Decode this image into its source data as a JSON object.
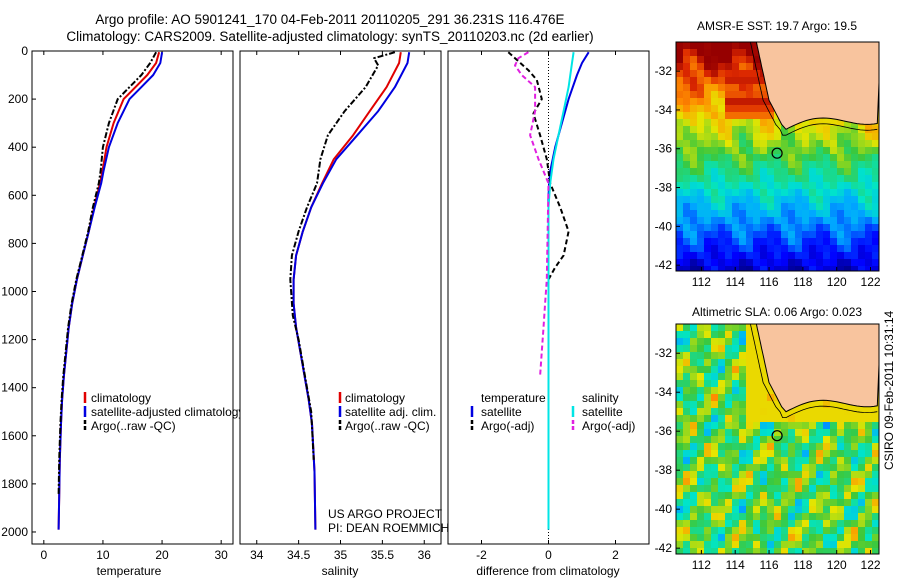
{
  "header": {
    "line1": "Argo profile: AO 5901241_170 04-Feb-2011 20110205_291 36.231S 116.476E",
    "line2": "Climatology: CARS2009. Satellite-adjusted climatology: synTS_20110203.nc (2d earlier)"
  },
  "side_label": "CSIRO 09-Feb-2011 10:31:14",
  "credit": {
    "line1": "US ARGO PROJECT",
    "line2": "PI: DEAN ROEMMICH"
  },
  "colors": {
    "climatology": "#e00000",
    "satellite": "#0000e0",
    "argo": "#000000",
    "salinity_sat": "#00e5e5",
    "salinity_argo": "#e020e0"
  },
  "chart_data": [
    {
      "type": "line",
      "xlabel": "temperature",
      "xlim": [
        -2,
        32
      ],
      "ylim": [
        2050,
        0
      ],
      "xticks": [
        0,
        10,
        20,
        30
      ],
      "yticks": [
        0,
        200,
        400,
        600,
        800,
        1000,
        1200,
        1400,
        1600,
        1800,
        2000
      ],
      "legend": [
        "climatology",
        "satellite-adjusted climatology",
        "Argo(..raw -QC)"
      ],
      "series": [
        {
          "name": "climatology",
          "style": "solid",
          "color": "#e00000",
          "x": [
            19.5,
            19.0,
            17.5,
            15.5,
            13.5,
            11.8,
            10.6,
            9.9,
            9.5,
            8.5,
            7.6,
            6.6,
            5.6,
            4.8,
            4.2,
            3.8,
            3.4,
            3.1,
            2.9,
            2.7,
            2.6,
            2.5
          ],
          "y": [
            5,
            50,
            100,
            150,
            200,
            300,
            400,
            500,
            550,
            650,
            750,
            850,
            950,
            1050,
            1150,
            1250,
            1350,
            1450,
            1550,
            1700,
            1850,
            1990
          ]
        },
        {
          "name": "satellite-adjusted climatology",
          "style": "solid",
          "color": "#0000e0",
          "x": [
            20.0,
            19.7,
            18.5,
            16.5,
            14.5,
            12.5,
            11.0,
            10.1,
            9.7,
            8.6,
            7.6,
            6.6,
            5.6,
            4.8,
            4.2,
            3.8,
            3.4,
            3.1,
            2.9,
            2.7,
            2.6,
            2.5
          ],
          "y": [
            5,
            50,
            100,
            150,
            200,
            300,
            400,
            500,
            550,
            650,
            750,
            850,
            950,
            1050,
            1150,
            1250,
            1350,
            1450,
            1550,
            1700,
            1850,
            1990
          ]
        },
        {
          "name": "Argo(..raw -QC)",
          "style": "dashdot",
          "color": "#000000",
          "x": [
            19.0,
            18.0,
            16.5,
            14.5,
            12.5,
            11.0,
            10.0,
            9.6,
            9.3,
            8.3,
            7.5,
            6.5,
            5.5,
            4.7,
            4.1,
            3.7,
            3.3,
            3.0,
            2.8,
            2.6,
            2.5
          ],
          "y": [
            5,
            50,
            100,
            150,
            200,
            300,
            400,
            500,
            550,
            650,
            750,
            850,
            950,
            1050,
            1150,
            1250,
            1350,
            1450,
            1550,
            1700,
            1850
          ]
        }
      ]
    },
    {
      "type": "line",
      "xlabel": "salinity",
      "xlim": [
        33.8,
        36.2
      ],
      "ylim": [
        2050,
        0
      ],
      "xticks": [
        34,
        34.5,
        35,
        35.5,
        36
      ],
      "yticks": [],
      "legend": [
        "climatology",
        "satellite adj. clim.",
        "Argo(..raw -QC)"
      ],
      "series": [
        {
          "name": "climatology",
          "style": "solid",
          "color": "#e00000",
          "x": [
            35.72,
            35.7,
            35.55,
            35.35,
            35.15,
            34.92,
            34.78,
            34.65,
            34.55,
            34.47,
            34.44,
            34.44,
            34.47,
            34.52,
            34.57,
            34.62,
            34.66,
            34.69,
            34.7
          ],
          "y": [
            5,
            50,
            150,
            250,
            350,
            450,
            550,
            650,
            750,
            850,
            950,
            1050,
            1150,
            1250,
            1350,
            1450,
            1550,
            1750,
            1990
          ]
        },
        {
          "name": "satellite adj. clim.",
          "style": "solid",
          "color": "#0000e0",
          "x": [
            35.82,
            35.8,
            35.65,
            35.45,
            35.2,
            34.95,
            34.79,
            34.65,
            34.55,
            34.47,
            34.44,
            34.44,
            34.47,
            34.52,
            34.57,
            34.62,
            34.66,
            34.69,
            34.7
          ],
          "y": [
            5,
            50,
            150,
            250,
            350,
            450,
            550,
            650,
            750,
            850,
            950,
            1050,
            1150,
            1250,
            1350,
            1450,
            1550,
            1750,
            1990
          ]
        },
        {
          "name": "Argo(..raw -QC)",
          "style": "dashdot",
          "color": "#000000",
          "x": [
            35.65,
            35.4,
            35.45,
            35.3,
            35.05,
            34.85,
            34.76,
            34.72,
            34.6,
            34.5,
            34.42,
            34.4,
            34.43,
            34.5,
            34.55,
            34.6,
            34.65,
            34.68
          ],
          "y": [
            5,
            30,
            60,
            150,
            250,
            350,
            450,
            550,
            650,
            750,
            850,
            950,
            1100,
            1200,
            1300,
            1400,
            1500,
            1700
          ]
        }
      ]
    },
    {
      "type": "line",
      "xlabel": "difference from climatology",
      "xlim": [
        -3,
        3
      ],
      "ylim": [
        2050,
        0
      ],
      "xticks": [
        -2,
        0,
        2
      ],
      "yticks": [],
      "legend_headers": [
        "temperature",
        "salinity"
      ],
      "legend": [
        "satellite",
        "Argo(-adj)",
        "satellite",
        "Argo(-adj)"
      ],
      "series": [
        {
          "name": "satellite",
          "group": "temperature",
          "style": "solid",
          "color": "#0000e0",
          "x": [
            1.2,
            1.0,
            0.85,
            0.6,
            0.4,
            0.2,
            0.05,
            0.0,
            0.0
          ],
          "y": [
            5,
            50,
            100,
            200,
            300,
            400,
            500,
            600,
            1990
          ]
        },
        {
          "name": "Argo(-adj)",
          "group": "temperature",
          "style": "dashed",
          "color": "#000000",
          "x": [
            -1.2,
            -1.0,
            -0.6,
            -0.35,
            -0.2,
            -0.45,
            -0.25,
            -0.05,
            0.05,
            0.35,
            0.6,
            0.45,
            0.2,
            0.0
          ],
          "y": [
            5,
            30,
            80,
            120,
            200,
            260,
            350,
            450,
            550,
            650,
            750,
            850,
            900,
            950
          ]
        },
        {
          "name": "satellite",
          "group": "salinity",
          "style": "solid",
          "color": "#00e5e5",
          "x": [
            0.75,
            0.7,
            0.6,
            0.45,
            0.3,
            0.15,
            0.05,
            0.0,
            0.0
          ],
          "y": [
            5,
            50,
            150,
            250,
            350,
            450,
            550,
            650,
            1990
          ]
        },
        {
          "name": "Argo(-adj)",
          "group": "salinity",
          "style": "dashed",
          "color": "#e020e0",
          "x": [
            -0.6,
            -0.9,
            -1.0,
            -0.8,
            -0.4,
            -0.4,
            -0.55,
            -0.3,
            0.0,
            -0.05,
            -0.1,
            -0.15,
            -0.2,
            -0.25
          ],
          "y": [
            5,
            30,
            60,
            100,
            150,
            250,
            350,
            450,
            550,
            950,
            1050,
            1150,
            1250,
            1350
          ]
        }
      ]
    },
    {
      "type": "heatmap",
      "title": "AMSR-E SST: 19.7 Argo: 19.5",
      "xlim": [
        110.5,
        122.5
      ],
      "ylim": [
        -42.3,
        -30.5
      ],
      "xticks": [
        112,
        114,
        116,
        118,
        120,
        122
      ],
      "yticks": [
        -32,
        -34,
        -36,
        -38,
        -40,
        -42
      ],
      "argo_marker": {
        "lon": 116.476,
        "lat": -36.231
      }
    },
    {
      "type": "heatmap",
      "title": "Altimetric SLA: 0.06 Argo: 0.023",
      "xlim": [
        110.5,
        122.5
      ],
      "ylim": [
        -42.3,
        -30.5
      ],
      "xticks": [
        112,
        114,
        116,
        118,
        120,
        122
      ],
      "yticks": [
        -32,
        -34,
        -36,
        -38,
        -40,
        -42
      ],
      "argo_marker": {
        "lon": 116.476,
        "lat": -36.231
      }
    }
  ]
}
